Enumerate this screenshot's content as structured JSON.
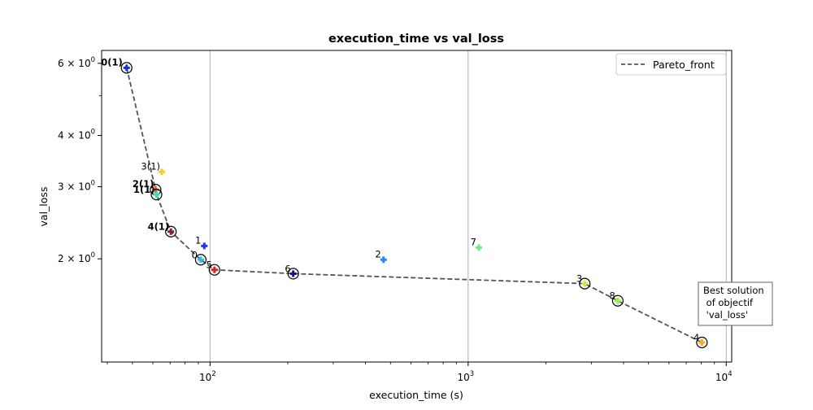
{
  "chart_data": {
    "type": "scatter",
    "title": "execution_time vs val_loss",
    "xlabel": "execution_time (s)",
    "ylabel": "val_loss",
    "xscale": "log",
    "yscale": "log",
    "xlim": [
      38,
      10500
    ],
    "ylim": [
      1.12,
      6.45
    ],
    "x_gridlines": [
      100,
      1000,
      10000
    ],
    "grid": "x-major only",
    "legend_position": "top-right",
    "x_ticks": [
      {
        "value": 100,
        "base": "10",
        "exp": "2"
      },
      {
        "value": 1000,
        "base": "10",
        "exp": "3"
      },
      {
        "value": 10000,
        "base": "10",
        "exp": "4"
      }
    ],
    "y_ticks": [
      {
        "value": 2,
        "mant": "2 × 10",
        "exp": "0"
      },
      {
        "value": 3,
        "mant": "3 × 10",
        "exp": "0"
      },
      {
        "value": 4,
        "mant": "4 × 10",
        "exp": "0"
      },
      {
        "value": 6,
        "mant": "6 × 10",
        "exp": "0"
      }
    ],
    "y_minor_ticks": [
      5
    ],
    "series": [
      {
        "name": "Pareto_front",
        "color": "#555555",
        "style": "dashed",
        "x": [
          47.5,
          61.5,
          62,
          70.5,
          92,
          104,
          210,
          2830,
          3800,
          8050
        ],
        "y": [
          5.85,
          2.95,
          2.87,
          2.33,
          1.99,
          1.88,
          1.84,
          1.74,
          1.58,
          1.25
        ]
      }
    ],
    "points": [
      {
        "label": "0(1)",
        "x": 47.5,
        "y": 5.85,
        "color": "#1133cc",
        "pareto": true,
        "bold": true
      },
      {
        "label": "3(1)",
        "x": 65,
        "y": 3.26,
        "color": "#ffcc22",
        "pareto": false,
        "bold": false
      },
      {
        "label": "2(1)",
        "x": 61.5,
        "y": 2.95,
        "color": "#ee5522",
        "pareto": true,
        "bold": true
      },
      {
        "label": "1(1)",
        "x": 62,
        "y": 2.87,
        "color": "#33ddbb",
        "pareto": true,
        "bold": true
      },
      {
        "label": "4(1)",
        "x": 70.5,
        "y": 2.33,
        "color": "#882233",
        "pareto": true,
        "bold": true
      },
      {
        "label": "1",
        "x": 95,
        "y": 2.15,
        "color": "#2233ee",
        "pareto": false,
        "bold": false
      },
      {
        "label": "0",
        "x": 92,
        "y": 1.99,
        "color": "#33bbee",
        "pareto": true,
        "bold": false
      },
      {
        "label": "5",
        "x": 104,
        "y": 1.88,
        "color": "#dd2222",
        "pareto": true,
        "bold": false
      },
      {
        "label": "6",
        "x": 210,
        "y": 1.84,
        "color": "#111188",
        "pareto": true,
        "bold": false
      },
      {
        "label": "2",
        "x": 470,
        "y": 1.99,
        "color": "#2288ee",
        "pareto": false,
        "bold": false
      },
      {
        "label": "7",
        "x": 1100,
        "y": 2.13,
        "color": "#66ee88",
        "pareto": false,
        "bold": false
      },
      {
        "label": "3",
        "x": 2830,
        "y": 1.74,
        "color": "#ccee44",
        "pareto": true,
        "bold": false
      },
      {
        "label": "8",
        "x": 3800,
        "y": 1.58,
        "color": "#99ee55",
        "pareto": true,
        "bold": false
      },
      {
        "label": "4",
        "x": 8050,
        "y": 1.25,
        "color": "#ffaa22",
        "pareto": true,
        "bold": false
      }
    ],
    "annotation": {
      "lines": [
        "Best solution",
        " of objectif",
        " 'val_loss'"
      ]
    }
  }
}
